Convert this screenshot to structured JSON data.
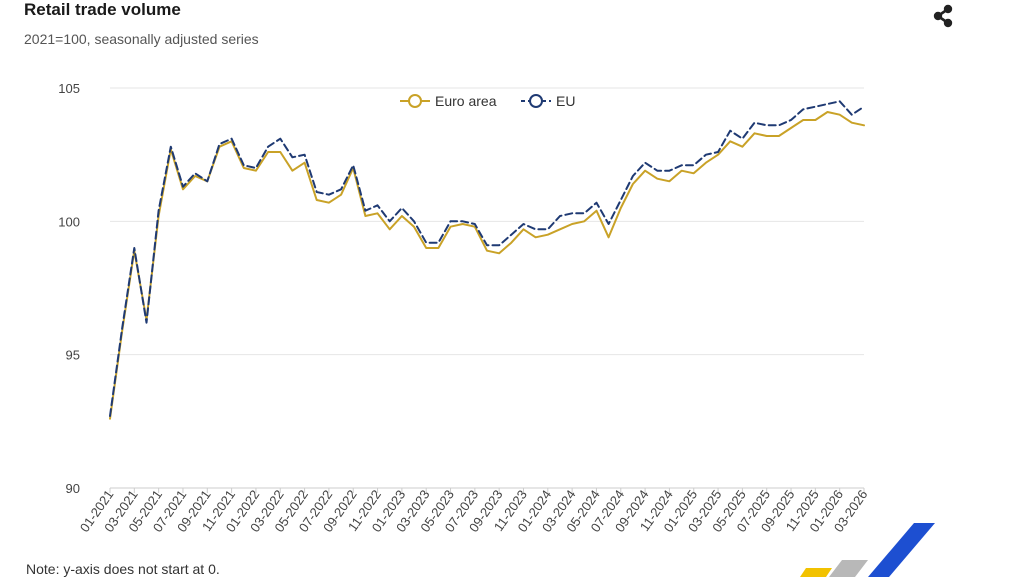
{
  "header": {
    "title": "Retail trade volume",
    "subtitle": "2021=100, seasonally adjusted series"
  },
  "toolbar": {
    "share_icon": "share-icon"
  },
  "footer": {
    "note": "Note: y-axis does not start at 0."
  },
  "logo": {
    "icon": "eurostat-logo"
  },
  "colors": {
    "euro_area": "#c9a227",
    "eu": "#1f3a73",
    "grid": "#e6e6e6",
    "axis": "#cccccc"
  },
  "chart_data": {
    "type": "line",
    "title": "Retail trade volume",
    "subtitle": "2021=100, seasonally adjusted series",
    "xlabel": "",
    "ylabel": "",
    "ylim": [
      90,
      105
    ],
    "yticks": [
      90,
      95,
      100,
      105
    ],
    "grid": true,
    "legend_position": "top",
    "x": [
      "01-2021",
      "02-2021",
      "03-2021",
      "04-2021",
      "05-2021",
      "06-2021",
      "07-2021",
      "08-2021",
      "09-2021",
      "10-2021",
      "11-2021",
      "12-2021",
      "01-2022",
      "02-2022",
      "03-2022",
      "04-2022",
      "05-2022",
      "06-2022",
      "07-2022",
      "08-2022",
      "09-2022",
      "10-2022",
      "11-2022",
      "12-2022",
      "01-2023",
      "02-2023",
      "03-2023",
      "04-2023",
      "05-2023",
      "06-2023",
      "07-2023",
      "08-2023",
      "09-2023",
      "10-2023",
      "11-2023",
      "12-2023",
      "01-2024",
      "02-2024",
      "03-2024",
      "04-2024",
      "05-2024",
      "06-2024",
      "07-2024",
      "08-2024",
      "09-2024",
      "10-2024",
      "11-2024",
      "12-2024",
      "01-2025",
      "02-2025",
      "03-2025",
      "04-2025",
      "05-2025",
      "06-2025",
      "07-2025",
      "08-2025",
      "09-2025",
      "10-2025",
      "11-2025",
      "12-2025",
      "01-2026",
      "02-2026",
      "03-2026"
    ],
    "xtick_labels": [
      "01-2021",
      "03-2021",
      "05-2021",
      "07-2021",
      "09-2021",
      "11-2021",
      "01-2022",
      "03-2022",
      "05-2022",
      "07-2022",
      "09-2022",
      "11-2022",
      "01-2023",
      "03-2023",
      "05-2023",
      "07-2023",
      "09-2023",
      "11-2023",
      "01-2024",
      "03-2024",
      "05-2024",
      "07-2024",
      "09-2024",
      "11-2024",
      "01-2025",
      "03-2025",
      "05-2025",
      "07-2025",
      "09-2025",
      "11-2025",
      "01-2026",
      "03-2026"
    ],
    "series": [
      {
        "name": "Euro area",
        "style": "solid",
        "values": [
          92.6,
          95.9,
          98.9,
          96.3,
          100.2,
          102.7,
          101.2,
          101.7,
          101.5,
          102.8,
          103.0,
          102.0,
          101.9,
          102.6,
          102.6,
          101.9,
          102.2,
          100.8,
          100.7,
          101.0,
          102.0,
          100.2,
          100.3,
          99.7,
          100.2,
          99.8,
          99.0,
          99.0,
          99.8,
          99.9,
          99.8,
          98.9,
          98.8,
          99.2,
          99.7,
          99.4,
          99.5,
          99.7,
          99.9,
          100.0,
          100.4,
          99.4,
          100.5,
          101.4,
          101.9,
          101.6,
          101.5,
          101.9,
          101.8,
          102.2,
          102.5,
          103.0,
          102.8,
          103.3,
          103.2,
          103.2,
          103.5,
          103.8,
          103.8,
          104.1,
          104.0,
          103.7,
          103.6
        ]
      },
      {
        "name": "EU",
        "style": "dashed",
        "values": [
          92.7,
          96.0,
          99.0,
          96.2,
          100.4,
          102.8,
          101.3,
          101.8,
          101.5,
          102.9,
          103.1,
          102.1,
          102.0,
          102.8,
          103.1,
          102.4,
          102.5,
          101.1,
          101.0,
          101.2,
          102.1,
          100.4,
          100.6,
          100.0,
          100.5,
          100.0,
          99.2,
          99.2,
          100.0,
          100.0,
          99.9,
          99.1,
          99.1,
          99.5,
          99.9,
          99.7,
          99.7,
          100.2,
          100.3,
          100.3,
          100.7,
          99.9,
          100.8,
          101.7,
          102.2,
          101.9,
          101.9,
          102.1,
          102.1,
          102.5,
          102.6,
          103.4,
          103.1,
          103.7,
          103.6,
          103.6,
          103.8,
          104.2,
          104.3,
          104.4,
          104.5,
          104.0,
          104.3
        ]
      }
    ]
  }
}
